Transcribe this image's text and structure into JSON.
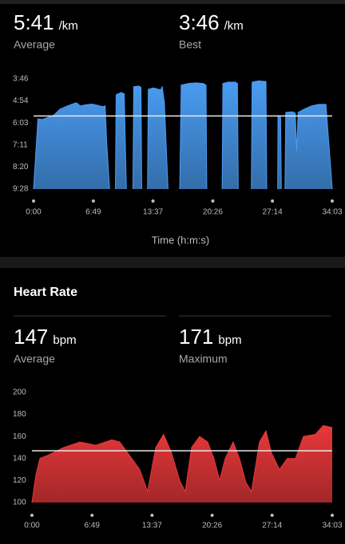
{
  "chart_data": [
    {
      "type": "area",
      "stats": [
        {
          "value": {
            "value": 341,
            "label": "5:41"
          },
          "unit": "/km",
          "label": "Average"
        },
        {
          "value": "3:46",
          "unit": "/km",
          "label": "Best"
        }
      ],
      "x_label": "Time (h:m:s)",
      "xlim": [
        0,
        2043
      ],
      "xticks": [
        {
          "value": 0,
          "label": "0:00"
        },
        {
          "value": 409,
          "label": "6:49"
        },
        {
          "value": 817,
          "label": "13:37"
        },
        {
          "value": 1226,
          "label": "20:26"
        },
        {
          "value": 1634,
          "label": "27:14"
        },
        {
          "value": 2043,
          "label": "34:03"
        }
      ],
      "ylim": [
        568,
        226
      ],
      "yticks": [
        {
          "value": 226,
          "label": "3:46"
        },
        {
          "value": 294,
          "label": "4:54"
        },
        {
          "value": 363,
          "label": "6:03"
        },
        {
          "value": 431,
          "label": "7:11"
        },
        {
          "value": 500,
          "label": "8:20"
        },
        {
          "value": 568,
          "label": "9:28"
        }
      ],
      "x": [
        0,
        30,
        60,
        100,
        140,
        180,
        220,
        260,
        290,
        300,
        320,
        360,
        400,
        440,
        470,
        490,
        500,
        520,
        540,
        560,
        565,
        600,
        620,
        635,
        660,
        680,
        685,
        720,
        735,
        740,
        760,
        780,
        785,
        820,
        870,
        880,
        895,
        920,
        960,
        1000,
        1010,
        1060,
        1110,
        1160,
        1180,
        1185,
        1240,
        1290,
        1295,
        1330,
        1380,
        1395,
        1400,
        1450,
        1490,
        1495,
        1540,
        1590,
        1595,
        1630,
        1670,
        1672,
        1690,
        1695,
        1710,
        1720,
        1725,
        1770,
        1790,
        1800,
        1810,
        1850,
        1900,
        1950,
        2000,
        2043
      ],
      "series": [
        {
          "color": "#4a9cf2",
          "values": [
            568,
            350,
            352,
            345,
            338,
            320,
            312,
            305,
            300,
            302,
            310,
            306,
            304,
            308,
            312,
            310,
            420,
            568,
            null,
            568,
            275,
            268,
            272,
            568,
            null,
            568,
            250,
            248,
            252,
            568,
            null,
            568,
            258,
            254,
            260,
            250,
            300,
            568,
            null,
            568,
            245,
            240,
            238,
            240,
            245,
            568,
            null,
            568,
            240,
            236,
            236,
            240,
            568,
            null,
            568,
            236,
            232,
            234,
            568,
            null,
            568,
            340,
            345,
            568,
            null,
            568,
            330,
            328,
            332,
            450,
            330,
            320,
            310,
            305,
            305,
            568
          ]
        }
      ]
    },
    {
      "type": "area",
      "title": "Heart Rate",
      "stats": [
        {
          "value": 147,
          "unit": "bpm",
          "label": "Average"
        },
        {
          "value": 171,
          "unit": "bpm",
          "label": "Maximum"
        }
      ],
      "xlim": [
        0,
        2043
      ],
      "xticks": [
        {
          "value": 0,
          "label": "0:00"
        },
        {
          "value": 409,
          "label": "6:49"
        },
        {
          "value": 817,
          "label": "13:37"
        },
        {
          "value": 1226,
          "label": "20:26"
        },
        {
          "value": 1634,
          "label": "27:14"
        },
        {
          "value": 2043,
          "label": "34:03"
        }
      ],
      "ylim": [
        100,
        200
      ],
      "yticks": [
        100,
        120,
        140,
        160,
        180,
        200
      ],
      "x": [
        0,
        27,
        54,
        109,
        217,
        326,
        434,
        543,
        597,
        652,
        733,
        787,
        842,
        896,
        950,
        1005,
        1043,
        1086,
        1141,
        1195,
        1238,
        1277,
        1315,
        1369,
        1412,
        1456,
        1494,
        1548,
        1592,
        1630,
        1684,
        1738,
        1793,
        1847,
        1928,
        1983,
        2043
      ],
      "series": [
        {
          "color": "#e8383a",
          "values": [
            100,
            125,
            140,
            143,
            150,
            155,
            152,
            157,
            155,
            145,
            130,
            110,
            150,
            162,
            145,
            120,
            110,
            150,
            160,
            155,
            140,
            120,
            140,
            155,
            140,
            118,
            110,
            155,
            165,
            145,
            130,
            140,
            140,
            160,
            162,
            170,
            168
          ]
        }
      ]
    }
  ]
}
